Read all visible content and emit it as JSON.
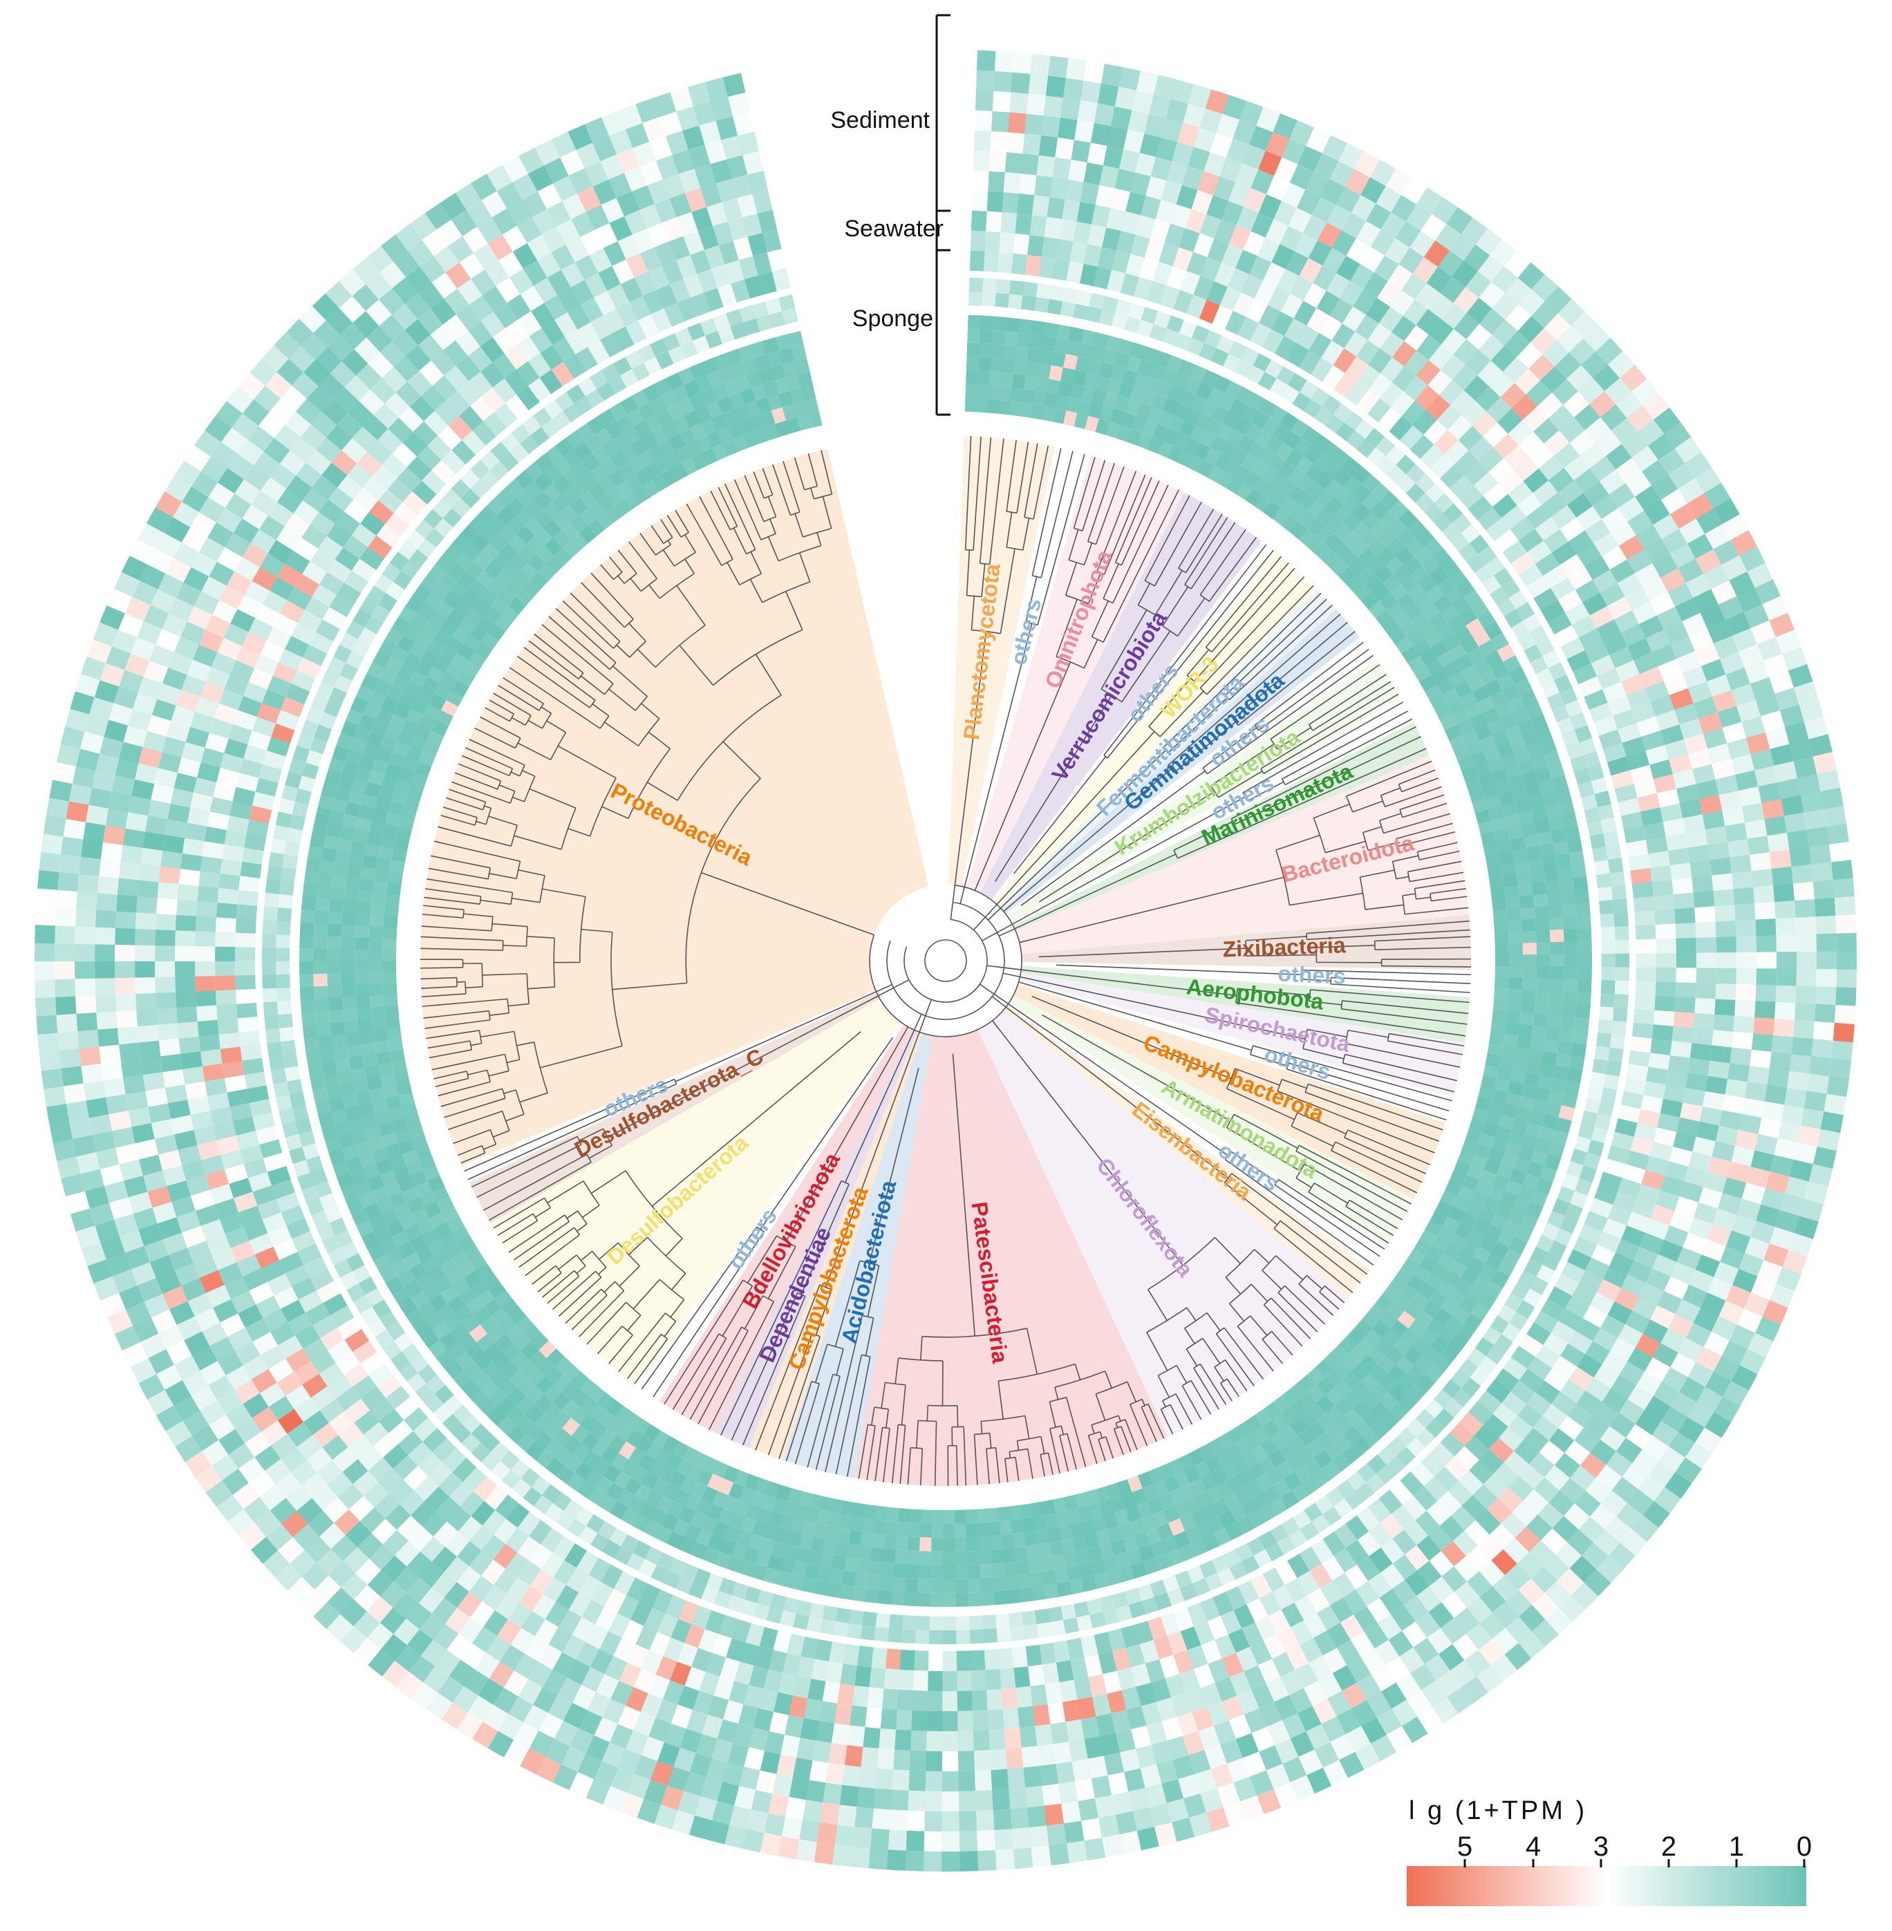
{
  "figure": {
    "ring_labels": [
      "Sediment",
      "Seawater",
      "Sponge"
    ],
    "heatmap": {
      "sediment_rows": 11,
      "seawater_rows": 2,
      "sponge_rows": 7,
      "color_max": "#f07055",
      "color_mid": "#ffffff",
      "color_min": "#6cc4b6"
    },
    "clades": [
      {
        "label": "Planctomycetota",
        "color": "#f5a54a",
        "start": 2,
        "end": 12
      },
      {
        "label": "others",
        "color": "#8fb8dc",
        "start": 12,
        "end": 16
      },
      {
        "label": "Omnitrophota",
        "color": "#f08a9c",
        "start": 16,
        "end": 27
      },
      {
        "label": "Verrucomicrobiota",
        "color": "#6a3a9c",
        "start": 27,
        "end": 37
      },
      {
        "label": "others",
        "color": "#8fb8dc",
        "start": 37,
        "end": 39
      },
      {
        "label": "WOR-3",
        "color": "#f3e06a",
        "start": 39,
        "end": 45
      },
      {
        "label": "Fermentibacterota",
        "color": "#8fb8dc",
        "start": 45,
        "end": 48
      },
      {
        "label": "Gemmatimonadota",
        "color": "#1f6fb5",
        "start": 48,
        "end": 52
      },
      {
        "label": "others",
        "color": "#8fb8dc",
        "start": 52,
        "end": 55
      },
      {
        "label": "Krumholzibacteriota",
        "color": "#a6d97a",
        "start": 55,
        "end": 60
      },
      {
        "label": "others",
        "color": "#8fb8dc",
        "start": 60,
        "end": 63
      },
      {
        "label": "Marinisomatota",
        "color": "#2a9a2a",
        "start": 63,
        "end": 67
      },
      {
        "label": "Bacteroidota",
        "color": "#f08a8a",
        "start": 67,
        "end": 85
      },
      {
        "label": "Zixibacteria",
        "color": "#a0522d",
        "start": 85,
        "end": 91
      },
      {
        "label": "others",
        "color": "#8fb8dc",
        "start": 91,
        "end": 94
      },
      {
        "label": "Aerophobota",
        "color": "#2a9a2a",
        "start": 94,
        "end": 99
      },
      {
        "label": "Spirochaetota",
        "color": "#c39bd3",
        "start": 99,
        "end": 105
      },
      {
        "label": "others",
        "color": "#8fb8dc",
        "start": 105,
        "end": 108
      },
      {
        "label": "Campylobacterota",
        "color": "#f57c00",
        "start": 108,
        "end": 117
      },
      {
        "label": "Armatimonadota",
        "color": "#a6d97a",
        "start": 117,
        "end": 123
      },
      {
        "label": "others",
        "color": "#8fb8dc",
        "start": 123,
        "end": 126
      },
      {
        "label": "Eisenbacteria",
        "color": "#f5a54a",
        "start": 126,
        "end": 130
      },
      {
        "label": "Chloroflexota",
        "color": "#c39bd3",
        "start": 130,
        "end": 155
      },
      {
        "label": "Patescibacteria",
        "color": "#d81b2a",
        "start": 155,
        "end": 190
      },
      {
        "label": "Acidobacteriota",
        "color": "#1f6fb5",
        "start": 190,
        "end": 198
      },
      {
        "label": "Campylobacterota",
        "color": "#f57c00",
        "start": 198,
        "end": 202
      },
      {
        "label": "Dependentiae",
        "color": "#6a3a9c",
        "start": 202,
        "end": 206
      },
      {
        "label": "Bdellovibrionota",
        "color": "#d81b2a",
        "start": 206,
        "end": 213
      },
      {
        "label": "others",
        "color": "#8fb8dc",
        "start": 213,
        "end": 216
      },
      {
        "label": "Desulfobacterota",
        "color": "#f3e06a",
        "start": 216,
        "end": 240
      },
      {
        "label": "Desulfobacterota_C",
        "color": "#a0522d",
        "start": 240,
        "end": 245
      },
      {
        "label": "others",
        "color": "#8fb8dc",
        "start": 245,
        "end": 247
      },
      {
        "label": "Proteobacteria",
        "color": "#f57c00",
        "start": 247,
        "end": 347
      }
    ]
  },
  "legend": {
    "title": "l g (1+TPM )",
    "ticks": [
      "5",
      "4",
      "3",
      "2",
      "1",
      "0"
    ],
    "color_high": "#f07055",
    "color_mid": "#ffffff",
    "color_low": "#6cc4b6"
  }
}
